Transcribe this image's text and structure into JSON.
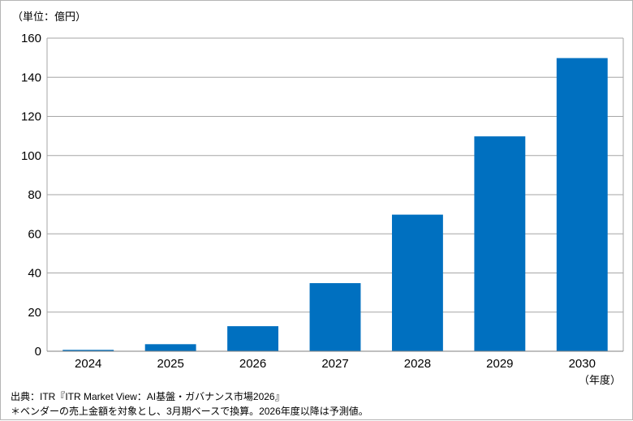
{
  "chart_data": {
    "type": "bar",
    "categories": [
      "2024",
      "2025",
      "2026",
      "2027",
      "2028",
      "2029",
      "2030"
    ],
    "values": [
      0.7,
      3.6,
      12.8,
      34.8,
      69.8,
      109.8,
      149.8
    ],
    "ylim": [
      0,
      160
    ],
    "yticks": [
      0,
      20,
      40,
      60,
      80,
      100,
      120,
      140,
      160
    ],
    "y_unit_label": "（単位：億円）",
    "x_unit_label": "（年度）",
    "bar_color": "#0070c0",
    "grid": true,
    "legend": "none"
  },
  "source": "出典：ITR『ITR Market View：AI基盤・ガバナンス市場2026』",
  "note": "＊ベンダーの売上金額を対象とし、3月期ベースで換算。2026年度以降は予測値。"
}
